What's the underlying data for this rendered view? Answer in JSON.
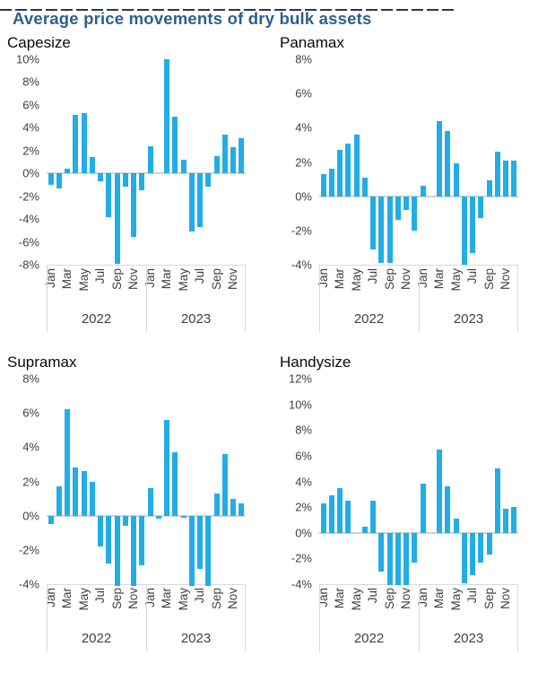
{
  "page": {
    "title": "Average price movements of dry bulk assets"
  },
  "colors": {
    "title_text": "#2d5f8d",
    "bar": "#22ade6",
    "zero_line": "#d2d2d2",
    "axis_line": "#d9d9d9",
    "tick_text": "#404040",
    "top_rule": "#253858"
  },
  "chart_data": [
    {
      "type": "bar",
      "title": "Capesize",
      "unit": "%",
      "ylim": [
        -8,
        10
      ],
      "ytick_step": 2,
      "grid": "off",
      "categories": [
        "Jan",
        "Feb",
        "Mar",
        "Apr",
        "May",
        "Jun",
        "Jul",
        "Aug",
        "Sep",
        "Oct",
        "Nov",
        "Dec"
      ],
      "month_tick_labels": [
        "Jan",
        "Mar",
        "May",
        "Jul",
        "Sep",
        "Nov"
      ],
      "series": [
        {
          "name": "2022",
          "values": [
            -1.0,
            -1.3,
            0.4,
            5.1,
            5.3,
            1.4,
            -0.7,
            -3.8,
            -7.9,
            -1.2,
            -5.6,
            -1.5
          ]
        },
        {
          "name": "2023",
          "values": [
            2.4,
            0,
            10.0,
            5.0,
            1.2,
            -5.1,
            -4.7,
            -1.2,
            1.5,
            3.4,
            2.3,
            3.1
          ]
        }
      ]
    },
    {
      "type": "bar",
      "title": "Panamax",
      "unit": "%",
      "ylim": [
        -4,
        8
      ],
      "ytick_step": 2,
      "grid": "off",
      "categories": [
        "Jan",
        "Feb",
        "Mar",
        "Apr",
        "May",
        "Jun",
        "Jul",
        "Aug",
        "Sep",
        "Oct",
        "Nov",
        "Dec"
      ],
      "month_tick_labels": [
        "Jan",
        "Mar",
        "May",
        "Jul",
        "Sep",
        "Nov"
      ],
      "series": [
        {
          "name": "2022",
          "values": [
            1.3,
            1.6,
            2.7,
            3.1,
            3.6,
            1.1,
            -3.1,
            -3.9,
            -3.9,
            -1.4,
            -0.8,
            -2.0
          ]
        },
        {
          "name": "2023",
          "values": [
            0.6,
            0,
            4.4,
            3.8,
            1.9,
            -4.0,
            -3.3,
            -1.3,
            0.9,
            2.6,
            2.1,
            2.1
          ]
        }
      ]
    },
    {
      "type": "bar",
      "title": "Supramax",
      "unit": "%",
      "ylim": [
        -4,
        8
      ],
      "ytick_step": 2,
      "grid": "off",
      "categories": [
        "Jan",
        "Feb",
        "Mar",
        "Apr",
        "May",
        "Jun",
        "Jul",
        "Aug",
        "Sep",
        "Oct",
        "Nov",
        "Dec"
      ],
      "month_tick_labels": [
        "Jan",
        "Mar",
        "May",
        "Jul",
        "Sep",
        "Nov"
      ],
      "series": [
        {
          "name": "2022",
          "values": [
            -0.5,
            1.7,
            6.2,
            2.8,
            2.6,
            2.0,
            -1.8,
            -2.8,
            -4.1,
            -0.6,
            -4.1,
            -2.9
          ]
        },
        {
          "name": "2023",
          "values": [
            1.6,
            -0.2,
            5.6,
            3.7,
            -0.1,
            -4.1,
            -3.1,
            -4.1,
            1.3,
            3.6,
            1.0,
            0.7
          ]
        }
      ]
    },
    {
      "type": "bar",
      "title": "Handysize",
      "unit": "%",
      "ylim": [
        -4,
        12
      ],
      "ytick_step": 2,
      "grid": "off",
      "categories": [
        "Jan",
        "Feb",
        "Mar",
        "Apr",
        "May",
        "Jun",
        "Jul",
        "Aug",
        "Sep",
        "Oct",
        "Nov",
        "Dec"
      ],
      "month_tick_labels": [
        "Jan",
        "Mar",
        "May",
        "Jul",
        "Sep",
        "Nov"
      ],
      "series": [
        {
          "name": "2022",
          "values": [
            2.3,
            2.9,
            3.5,
            2.5,
            0,
            0.5,
            2.5,
            -3.0,
            -4.1,
            -4.1,
            -4.1,
            -2.3
          ]
        },
        {
          "name": "2023",
          "values": [
            3.8,
            0,
            6.5,
            3.6,
            1.1,
            -3.9,
            -3.3,
            -2.3,
            -1.7,
            5.0,
            1.9,
            2.0
          ]
        }
      ]
    }
  ]
}
